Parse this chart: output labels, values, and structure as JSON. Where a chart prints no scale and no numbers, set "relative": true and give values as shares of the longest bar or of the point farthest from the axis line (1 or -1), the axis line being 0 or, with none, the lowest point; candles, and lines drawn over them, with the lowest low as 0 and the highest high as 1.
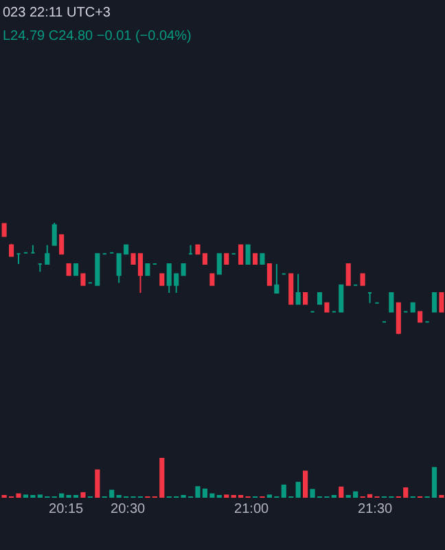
{
  "chart_data": [
    {
      "type": "candlestick",
      "relative": true,
      "tick_labels": false,
      "annotations": [
        "023 22:11 UTC+3",
        "L24.79 C24.80 −0.01 (−0.04%)"
      ],
      "xlim": [
        19.983,
        21.783
      ],
      "x": [
        20.0,
        20.029,
        20.058,
        20.087,
        20.116,
        20.145,
        20.174,
        20.203,
        20.232,
        20.261,
        20.29,
        20.319,
        20.348,
        20.377,
        20.406,
        20.435,
        20.464,
        20.493,
        20.522,
        20.551,
        20.58,
        20.609,
        20.638,
        20.667,
        20.696,
        20.725,
        20.754,
        20.783,
        20.812,
        20.841,
        20.87,
        20.899,
        20.928,
        20.957,
        20.986,
        21.015,
        21.044,
        21.073,
        21.102,
        21.131,
        21.16,
        21.189,
        21.218,
        21.247,
        21.276,
        21.305,
        21.334,
        21.363,
        21.392,
        21.421,
        21.45,
        21.479,
        21.508,
        21.537,
        21.566,
        21.595,
        21.624,
        21.653,
        21.682,
        21.711,
        21.74,
        21.769
      ],
      "colors": [
        "#f23645",
        "#f23645",
        "#089981",
        "#089981",
        "#089981",
        "#089981",
        "#089981",
        "#089981",
        "#f23645",
        "#f23645",
        "#089981",
        "#f23645",
        "#089981",
        "#089981",
        "#089981",
        "#089981",
        "#089981",
        "#089981",
        "#f23645",
        "#f23645",
        "#089981",
        "#089981",
        "#f23645",
        "#089981",
        "#089981",
        "#089981",
        "#089981",
        "#f23645",
        "#f23645",
        "#f23645",
        "#089981",
        "#f23645",
        "#089981",
        "#f23645",
        "#089981",
        "#f23645",
        "#089981",
        "#f23645",
        "#089981",
        "#089981",
        "#f23645",
        "#089981",
        "#f23645",
        "#089981",
        "#089981",
        "#f23645",
        "#089981",
        "#089981",
        "#f23645",
        "#089981",
        "#f23645",
        "#089981",
        "#089981",
        "#089981",
        "#089981",
        "#f23645",
        "#089981",
        "#089981",
        "#f23645",
        "#089981",
        "#089981",
        "#f23645"
      ],
      "ohlc": [
        [
          0.99,
          0.99,
          0.88,
          0.88
        ],
        [
          0.8,
          0.81,
          0.7,
          0.7
        ],
        [
          0.72,
          0.72,
          0.63,
          0.72
        ],
        [
          0.73,
          0.73,
          0.73,
          0.73
        ],
        [
          0.73,
          0.8,
          0.73,
          0.73
        ],
        [
          0.63,
          0.63,
          0.56,
          0.63
        ],
        [
          0.63,
          0.8,
          0.63,
          0.72
        ],
        [
          0.8,
          1,
          0.8,
          0.98
        ],
        [
          0.89,
          0.89,
          0.72,
          0.72
        ],
        [
          0.63,
          0.63,
          0.53,
          0.53
        ],
        [
          0.53,
          0.63,
          0.53,
          0.63
        ],
        [
          0.54,
          0.54,
          0.44,
          0.44
        ],
        [
          0.46,
          0.46,
          0.46,
          0.46
        ],
        [
          0.44,
          0.72,
          0.44,
          0.72
        ],
        [
          0.72,
          0.72,
          0.72,
          0.72
        ],
        [
          0.73,
          0.73,
          0.73,
          0.73
        ],
        [
          0.53,
          0.72,
          0.46,
          0.72
        ],
        [
          0.72,
          0.8,
          0.72,
          0.8
        ],
        [
          0.72,
          0.72,
          0.63,
          0.63
        ],
        [
          0.72,
          0.72,
          0.37,
          0.53
        ],
        [
          0.53,
          0.63,
          0.53,
          0.63
        ],
        [
          0.63,
          0.63,
          0.63,
          0.63
        ],
        [
          0.54,
          0.54,
          0.44,
          0.44
        ],
        [
          0.44,
          0.63,
          0.37,
          0.63
        ],
        [
          0.44,
          0.54,
          0.37,
          0.54
        ],
        [
          0.53,
          0.63,
          0.53,
          0.63
        ],
        [
          0.72,
          0.8,
          0.72,
          0.72
        ],
        [
          0.8,
          0.8,
          0.72,
          0.72
        ],
        [
          0.72,
          0.72,
          0.63,
          0.63
        ],
        [
          0.54,
          0.54,
          0.44,
          0.44
        ],
        [
          0.54,
          0.72,
          0.54,
          0.72
        ],
        [
          0.72,
          0.72,
          0.63,
          0.63
        ],
        [
          0.72,
          0.72,
          0.72,
          0.72
        ],
        [
          0.8,
          0.8,
          0.63,
          0.63
        ],
        [
          0.63,
          0.8,
          0.63,
          0.8
        ],
        [
          0.72,
          0.72,
          0.63,
          0.63
        ],
        [
          0.63,
          0.72,
          0.63,
          0.72
        ],
        [
          0.63,
          0.63,
          0.44,
          0.44
        ],
        [
          0.37,
          0.63,
          0.37,
          0.44
        ],
        [
          0.54,
          0.54,
          0.54,
          0.54
        ],
        [
          0.54,
          0.54,
          0.27,
          0.27
        ],
        [
          0.27,
          0.54,
          0.27,
          0.37
        ],
        [
          0.37,
          0.37,
          0.27,
          0.27
        ],
        [
          0.2,
          0.2,
          0.2,
          0.2
        ],
        [
          0.27,
          0.37,
          0.27,
          0.37
        ],
        [
          0.28,
          0.28,
          0.2,
          0.2
        ],
        [
          0.2,
          0.2,
          0.2,
          0.2
        ],
        [
          0.2,
          0.44,
          0.2,
          0.44
        ],
        [
          0.63,
          0.63,
          0.44,
          0.44
        ],
        [
          0.44,
          0.44,
          0.44,
          0.44
        ],
        [
          0.54,
          0.54,
          0.44,
          0.44
        ],
        [
          0.37,
          0.37,
          0.28,
          0.37
        ],
        [
          0.28,
          0.28,
          0.28,
          0.28
        ],
        [
          0.11,
          0.11,
          0.11,
          0.11
        ],
        [
          0.2,
          0.37,
          0.2,
          0.37
        ],
        [
          0.28,
          0.28,
          0,
          0.01
        ],
        [
          0.2,
          0.2,
          0.2,
          0.2
        ],
        [
          0.2,
          0.28,
          0.2,
          0.28
        ],
        [
          0.2,
          0.2,
          0.11,
          0.11
        ],
        [
          0.11,
          0.11,
          0.11,
          0.11
        ],
        [
          0.2,
          0.37,
          0.2,
          0.37
        ],
        [
          0.37,
          0.37,
          0.2,
          0.2
        ]
      ]
    },
    {
      "type": "bar",
      "relative": true,
      "tick_labels": "x",
      "xlim": [
        19.983,
        21.783
      ],
      "xticks": [
        {
          "value": 20.25,
          "label": "20:15"
        },
        {
          "value": 20.5,
          "label": "20:30"
        },
        {
          "value": 21,
          "label": "21:00"
        },
        {
          "value": 21.5,
          "label": "21:30"
        }
      ],
      "x": [
        20.0,
        20.029,
        20.058,
        20.087,
        20.116,
        20.145,
        20.174,
        20.203,
        20.232,
        20.261,
        20.29,
        20.319,
        20.348,
        20.377,
        20.406,
        20.435,
        20.464,
        20.493,
        20.522,
        20.551,
        20.58,
        20.609,
        20.638,
        20.667,
        20.696,
        20.725,
        20.754,
        20.783,
        20.812,
        20.841,
        20.87,
        20.899,
        20.928,
        20.957,
        20.986,
        21.015,
        21.044,
        21.073,
        21.102,
        21.131,
        21.16,
        21.189,
        21.218,
        21.247,
        21.276,
        21.305,
        21.334,
        21.363,
        21.392,
        21.421,
        21.45,
        21.479,
        21.508,
        21.537,
        21.566,
        21.595,
        21.624,
        21.653,
        21.682,
        21.711,
        21.74,
        21.769
      ],
      "values": [
        0.05,
        0.03,
        0.11,
        0.08,
        0.05,
        0.08,
        0.03,
        0.03,
        0.11,
        0.06,
        0.06,
        0.14,
        0.03,
        0.71,
        0.03,
        0.2,
        0.05,
        0.02,
        0.02,
        0.03,
        0.02,
        0.02,
        1,
        0.03,
        0.02,
        0.06,
        0.02,
        0.29,
        0.23,
        0.11,
        0.06,
        0.08,
        0.06,
        0.06,
        0.02,
        0.03,
        0.02,
        0.08,
        0.02,
        0.33,
        0.02,
        0.4,
        0.68,
        0.22,
        0.02,
        0.02,
        0.05,
        0.28,
        0.05,
        0.16,
        0.03,
        0.09,
        0.02,
        0.02,
        0.02,
        0.03,
        0.26,
        0.02,
        0.02,
        0.02,
        0.77,
        0.06
      ],
      "colors": [
        "#f23645",
        "#f23645",
        "#f23645",
        "#089981",
        "#089981",
        "#089981",
        "#089981",
        "#089981",
        "#089981",
        "#089981",
        "#089981",
        "#f23645",
        "#089981",
        "#f23645",
        "#089981",
        "#089981",
        "#089981",
        "#089981",
        "#089981",
        "#089981",
        "#f23645",
        "#f23645",
        "#f23645",
        "#089981",
        "#089981",
        "#089981",
        "#089981",
        "#089981",
        "#089981",
        "#089981",
        "#089981",
        "#f23645",
        "#f23645",
        "#f23645",
        "#f23645",
        "#089981",
        "#f23645",
        "#089981",
        "#089981",
        "#089981",
        "#089981",
        "#089981",
        "#f23645",
        "#089981",
        "#089981",
        "#089981",
        "#089981",
        "#f23645",
        "#089981",
        "#089981",
        "#f23645",
        "#f23645",
        "#f23645",
        "#089981",
        "#089981",
        "#f23645",
        "#f23645",
        "#089981",
        "#f23645",
        "#089981",
        "#089981",
        "#f23645"
      ]
    }
  ]
}
